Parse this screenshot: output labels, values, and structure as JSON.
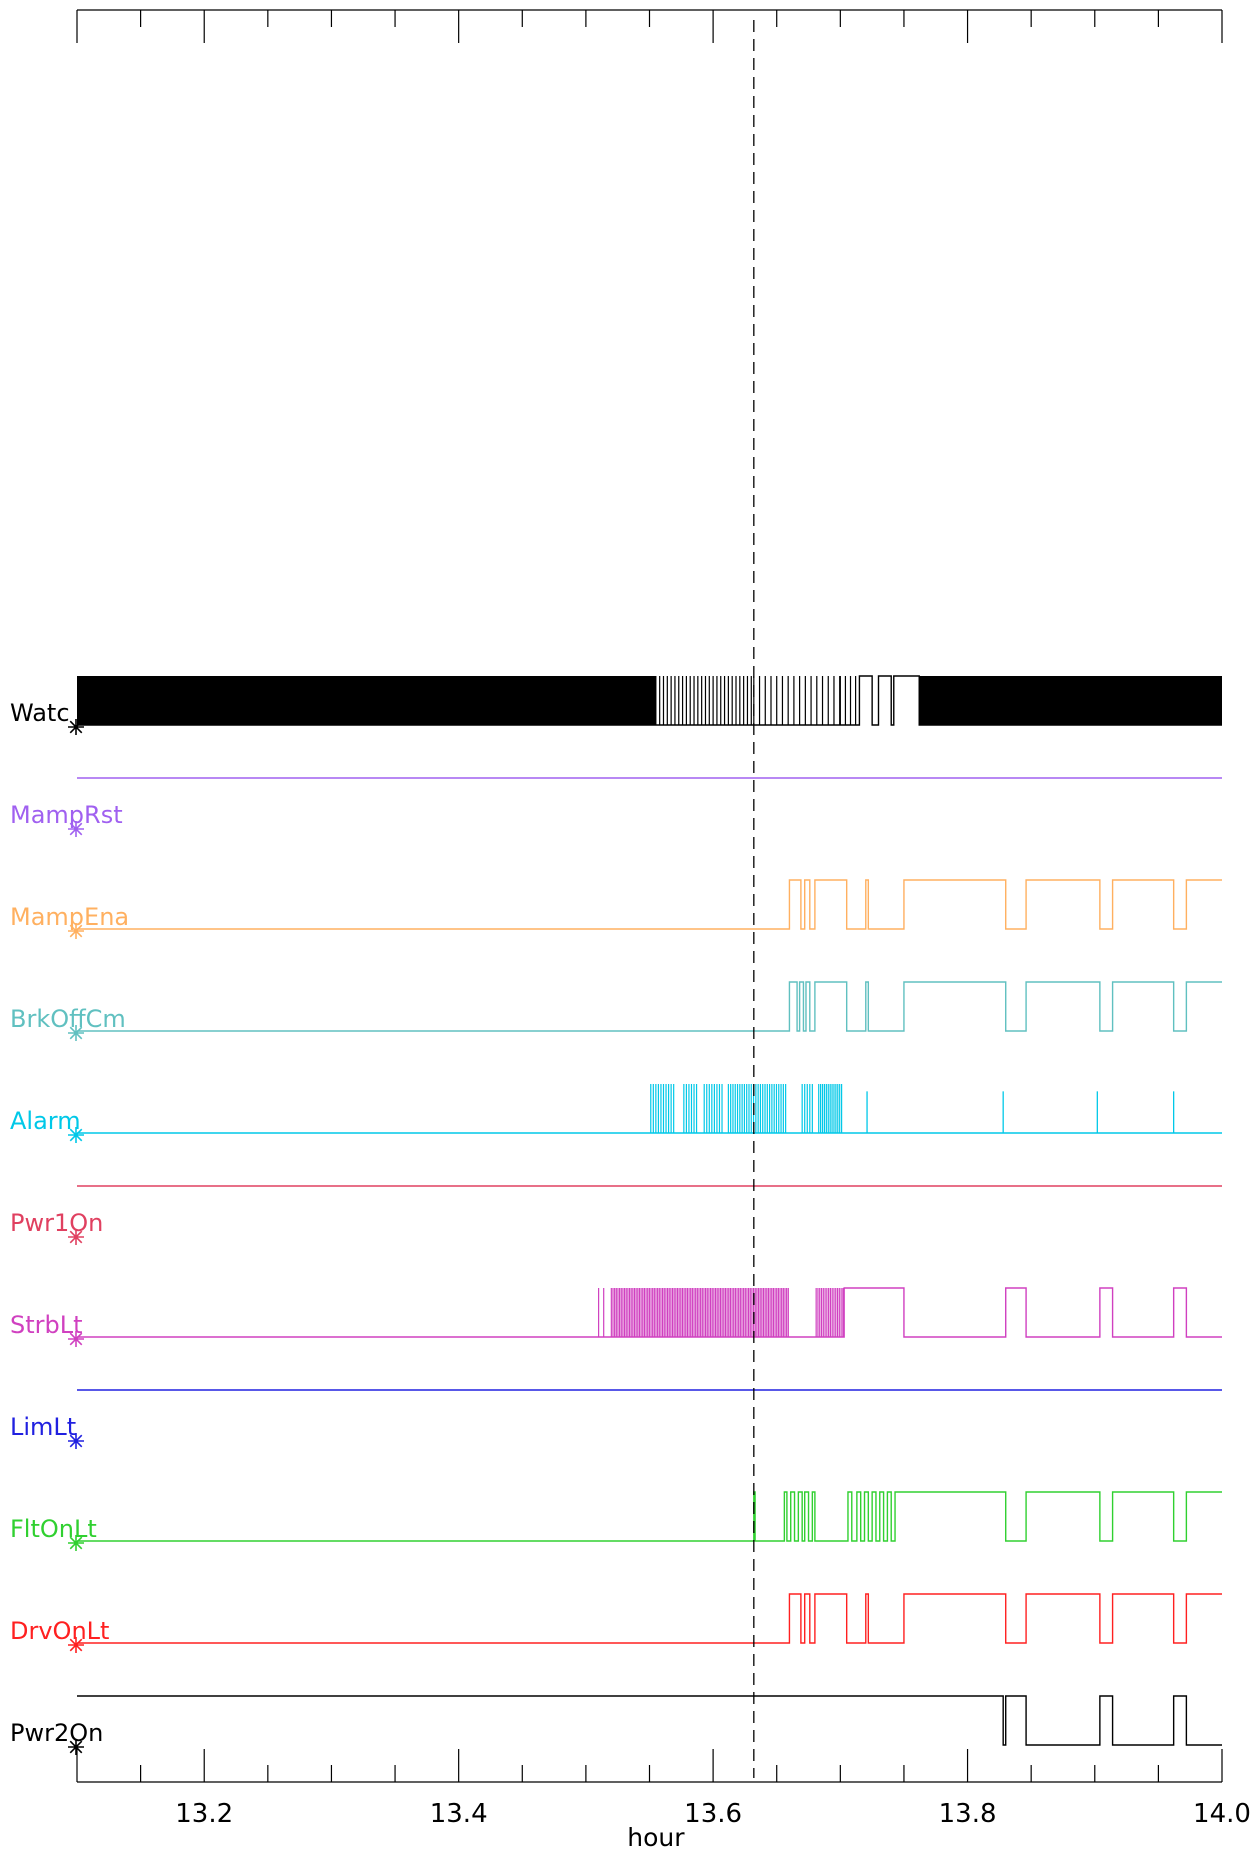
{
  "chart_data": {
    "type": "line",
    "title": "",
    "xlabel": "hour",
    "ylabel": "",
    "xlim": [
      13.1,
      14.0
    ],
    "xticks": [
      13.2,
      13.4,
      13.6,
      13.8,
      14.0
    ],
    "xtick_labels": [
      "13.2",
      "13.4",
      "13.6",
      "13.8",
      "14.0"
    ],
    "minor_tick_step": 0.05,
    "marker_line_x": 13.632,
    "series": [
      {
        "name": "Watchdog",
        "shown_label": "Watc",
        "color": "#000000",
        "dense": true,
        "blocks": [
          [
            13.1,
            13.555
          ],
          [
            13.762,
            14.0
          ]
        ],
        "pulse_ranges": [
          [
            13.555,
            13.632,
            0.003
          ],
          [
            13.632,
            13.7,
            0.0045
          ],
          [
            13.7,
            13.715,
            0.004
          ]
        ],
        "x": [
          13.1,
          13.715,
          13.715,
          13.725,
          13.725,
          13.73,
          13.73,
          13.74,
          13.74,
          13.742,
          13.742,
          13.762,
          13.762,
          14.0
        ],
        "y": [
          0,
          0,
          1,
          1,
          0,
          0,
          1,
          1,
          0,
          0,
          1,
          1,
          0,
          0
        ]
      },
      {
        "name": "MampRst",
        "color": "#a060f0",
        "x": [
          13.1,
          14.0
        ],
        "y": [
          1,
          1
        ]
      },
      {
        "name": "MampEna",
        "color": "#ffb060",
        "x": [
          13.1,
          13.66,
          13.66,
          13.669,
          13.669,
          13.672,
          13.672,
          13.676,
          13.676,
          13.68,
          13.68,
          13.705,
          13.705,
          13.72,
          13.72,
          13.722,
          13.722,
          13.75,
          13.75,
          13.83,
          13.83,
          13.846,
          13.846,
          13.904,
          13.904,
          13.914,
          13.914,
          13.962,
          13.962,
          13.972,
          13.972,
          14.0
        ],
        "y": [
          0,
          0,
          1,
          1,
          0,
          0,
          1,
          1,
          0,
          0,
          1,
          1,
          0,
          0,
          1,
          1,
          0,
          0,
          1,
          1,
          0,
          0,
          1,
          1,
          0,
          0,
          1,
          1,
          0,
          0,
          1,
          1
        ]
      },
      {
        "name": "BrkOffCm",
        "color": "#60c0c0",
        "x": [
          13.1,
          13.66,
          13.66,
          13.666,
          13.666,
          13.668,
          13.668,
          13.671,
          13.671,
          13.673,
          13.673,
          13.676,
          13.676,
          13.68,
          13.68,
          13.705,
          13.705,
          13.72,
          13.72,
          13.722,
          13.722,
          13.75,
          13.75,
          13.83,
          13.83,
          13.846,
          13.846,
          13.904,
          13.904,
          13.914,
          13.914,
          13.962,
          13.962,
          13.972,
          13.972,
          14.0
        ],
        "y": [
          0,
          0,
          1,
          1,
          0,
          0,
          1,
          1,
          0,
          0,
          1,
          1,
          0,
          0,
          1,
          1,
          0,
          0,
          1,
          1,
          0,
          0,
          1,
          1,
          0,
          0,
          1,
          1,
          0,
          0,
          1,
          1,
          0,
          0,
          1,
          1
        ]
      },
      {
        "name": "Alarm",
        "color": "#00c8e8",
        "x": [
          13.1,
          14.0
        ],
        "y": [
          0,
          0
        ],
        "pulse_ranges": [
          [
            13.551,
            13.569,
            0.002
          ],
          [
            13.577,
            13.587,
            0.002
          ],
          [
            13.593,
            13.608,
            0.002
          ],
          [
            13.612,
            13.658,
            0.0018
          ],
          [
            13.67,
            13.678,
            0.002
          ],
          [
            13.683,
            13.702,
            0.0015
          ]
        ],
        "spikes": [
          13.721,
          13.828,
          13.902,
          13.962
        ]
      },
      {
        "name": "Pwr1On",
        "color": "#e04060",
        "x": [
          13.1,
          14.0
        ],
        "y": [
          1,
          1
        ]
      },
      {
        "name": "StrbLt",
        "color": "#d040c0",
        "x": [
          13.1,
          13.703,
          13.703,
          13.72,
          13.72,
          13.75,
          13.75,
          13.83,
          13.83,
          13.846,
          13.846,
          13.904,
          13.904,
          13.914,
          13.914,
          13.962,
          13.962,
          13.972,
          13.972,
          14.0
        ],
        "y": [
          0,
          0,
          1,
          1,
          1,
          1,
          0,
          0,
          1,
          1,
          0,
          0,
          1,
          1,
          0,
          0,
          1,
          1,
          0,
          0
        ],
        "pulse_ranges": [
          [
            13.51,
            13.515,
            0.004
          ],
          [
            13.52,
            13.66,
            0.0013
          ],
          [
            13.681,
            13.703,
            0.0014
          ]
        ]
      },
      {
        "name": "LimLt",
        "color": "#2020e0",
        "x": [
          13.1,
          14.0
        ],
        "y": [
          1,
          1
        ]
      },
      {
        "name": "FltOnLt",
        "color": "#30d030",
        "x": [
          13.1,
          13.632,
          13.632,
          13.633,
          13.633,
          13.656,
          13.656,
          13.658,
          13.658,
          13.661,
          13.661,
          13.664,
          13.664,
          13.667,
          13.667,
          13.67,
          13.67,
          13.672,
          13.672,
          13.675,
          13.675,
          13.678,
          13.678,
          13.68,
          13.68,
          13.706,
          13.706,
          13.709,
          13.709,
          13.713,
          13.713,
          13.716,
          13.716,
          13.719,
          13.719,
          13.722,
          13.722,
          13.725,
          13.725,
          13.728,
          13.728,
          13.731,
          13.731,
          13.734,
          13.734,
          13.737,
          13.737,
          13.74,
          13.74,
          13.743,
          13.743,
          13.83,
          13.83,
          13.846,
          13.846,
          13.904,
          13.904,
          13.914,
          13.914,
          13.962,
          13.962,
          13.972,
          13.972,
          14.0
        ],
        "y": [
          0,
          0,
          1,
          1,
          0,
          0,
          1,
          1,
          0,
          0,
          1,
          1,
          0,
          0,
          1,
          1,
          0,
          0,
          1,
          1,
          0,
          0,
          1,
          1,
          0,
          0,
          1,
          1,
          0,
          0,
          1,
          1,
          0,
          0,
          1,
          1,
          0,
          0,
          1,
          1,
          0,
          0,
          1,
          1,
          0,
          0,
          1,
          1,
          0,
          0,
          1,
          1,
          0,
          0,
          1,
          1,
          0,
          0,
          1,
          1,
          0,
          0,
          1,
          1
        ]
      },
      {
        "name": "DrvOnLt",
        "color": "#ff2020",
        "x": [
          13.1,
          13.66,
          13.66,
          13.669,
          13.669,
          13.672,
          13.672,
          13.676,
          13.676,
          13.68,
          13.68,
          13.705,
          13.705,
          13.72,
          13.72,
          13.722,
          13.722,
          13.75,
          13.75,
          13.83,
          13.83,
          13.846,
          13.846,
          13.904,
          13.904,
          13.914,
          13.914,
          13.962,
          13.962,
          13.972,
          13.972,
          14.0
        ],
        "y": [
          0,
          0,
          1,
          1,
          0,
          0,
          1,
          1,
          0,
          0,
          1,
          1,
          0,
          0,
          1,
          1,
          0,
          0,
          1,
          1,
          0,
          0,
          1,
          1,
          0,
          0,
          1,
          1,
          0,
          0,
          1,
          1
        ]
      },
      {
        "name": "Pwr2On",
        "color": "#000000",
        "x": [
          13.1,
          13.828,
          13.828,
          13.83,
          13.83,
          13.846,
          13.846,
          13.904,
          13.904,
          13.914,
          13.914,
          13.962,
          13.962,
          13.972,
          13.972,
          14.0
        ],
        "y": [
          1,
          1,
          0,
          0,
          1,
          1,
          0,
          0,
          1,
          1,
          0,
          0,
          1,
          1,
          0,
          0
        ]
      }
    ]
  }
}
